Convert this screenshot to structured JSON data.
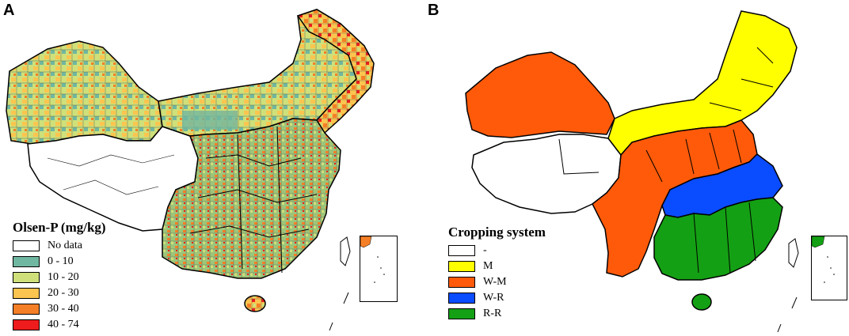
{
  "figure": {
    "panels": [
      {
        "id": "A",
        "legend": {
          "title": "Olsen-P (mg/kg)",
          "items": [
            {
              "label": "No data",
              "color": "#ffffff"
            },
            {
              "label": "0 - 10",
              "color": "#6fb7a0"
            },
            {
              "label": "10 - 20",
              "color": "#cfe07a"
            },
            {
              "label": "20 - 30",
              "color": "#fbc54f"
            },
            {
              "label": "30 - 40",
              "color": "#f57f26"
            },
            {
              "label": "40 - 74",
              "color": "#ee1c1c"
            }
          ]
        }
      },
      {
        "id": "B",
        "legend": {
          "title": "Cropping system",
          "items": [
            {
              "label": "-",
              "color": "#ffffff"
            },
            {
              "label": "M",
              "color": "#ffff00"
            },
            {
              "label": "W-M",
              "color": "#ff5a0a"
            },
            {
              "label": "W-R",
              "color": "#0a4cff"
            },
            {
              "label": "R-R",
              "color": "#14a014"
            }
          ]
        }
      }
    ]
  }
}
